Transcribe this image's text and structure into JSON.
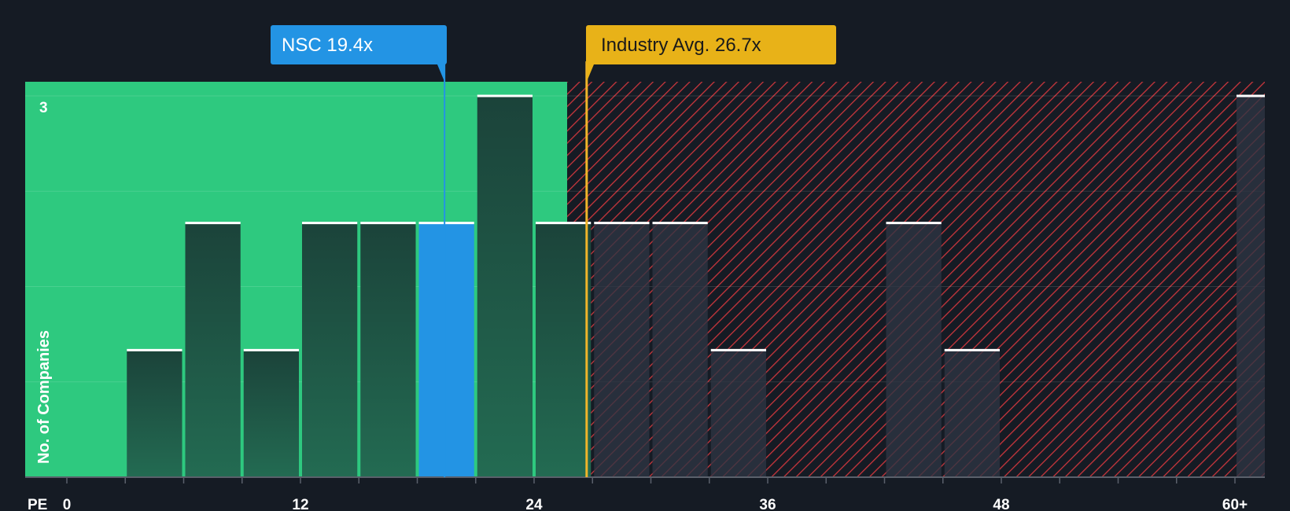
{
  "chart_data": {
    "type": "bar",
    "title": "",
    "xlabel": "PE",
    "ylabel": "No. of Companies",
    "xlim": [
      0,
      60
    ],
    "ylim": [
      0,
      3
    ],
    "bin_width": 3,
    "x_ticks": [
      {
        "value": 0,
        "label": "0"
      },
      {
        "value": 12,
        "label": "12"
      },
      {
        "value": 24,
        "label": "24"
      },
      {
        "value": 36,
        "label": "36"
      },
      {
        "value": 48,
        "label": "48"
      },
      {
        "value": 60,
        "label": "60+"
      }
    ],
    "y_ticks": [
      {
        "value": 3,
        "label": "3"
      }
    ],
    "bins": [
      {
        "start": 3,
        "count": 1
      },
      {
        "start": 6,
        "count": 2
      },
      {
        "start": 9,
        "count": 1
      },
      {
        "start": 12,
        "count": 2
      },
      {
        "start": 15,
        "count": 2
      },
      {
        "start": 18,
        "count": 2,
        "highlight": true
      },
      {
        "start": 21,
        "count": 3
      },
      {
        "start": 24,
        "count": 2
      },
      {
        "start": 27,
        "count": 2
      },
      {
        "start": 30,
        "count": 2
      },
      {
        "start": 33,
        "count": 1
      },
      {
        "start": 42,
        "count": 2
      },
      {
        "start": 45,
        "count": 1
      },
      {
        "start": 60,
        "count": 3
      }
    ],
    "company": {
      "name": "NSC",
      "value": 19.4,
      "label": "NSC 19.4x"
    },
    "industry": {
      "value": 26.7,
      "label": "Industry Avg. 26.7x"
    },
    "fair_zone_end": 25.7,
    "colors": {
      "background": "#151b24",
      "fair_zone": "#2ec97f",
      "over_zone_stripe": "#d6393f",
      "bar": "#1e4a3d",
      "bar_over": "#2a2f3b",
      "bar_top": "#ffffff",
      "highlight": "#2394e4",
      "company_label": "#2394e4",
      "industry_label": "#e8b218",
      "industry_line": "#f0b52a"
    }
  }
}
